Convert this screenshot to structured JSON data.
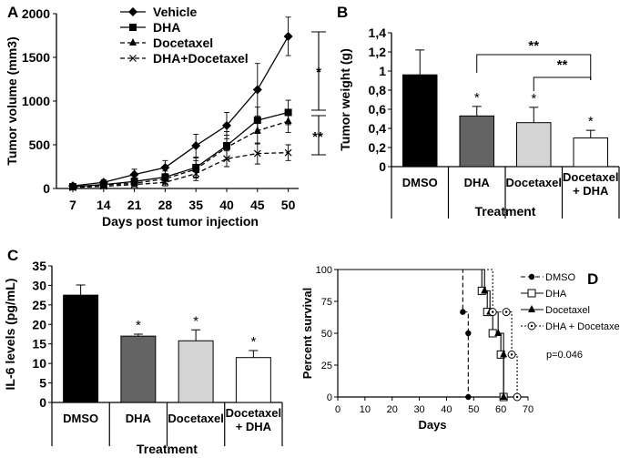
{
  "chart_data": [
    {
      "panel": "A",
      "type": "line",
      "ylabel": "Tumor volume (mm3)",
      "xlabel": "Days post tumor injection",
      "categories": [
        "7",
        "14",
        "21",
        "28",
        "35",
        "40",
        "45",
        "50"
      ],
      "ylim": [
        0,
        2000
      ],
      "yticks": [
        "0",
        "500",
        "1000",
        "1500",
        "2000"
      ],
      "series": [
        {
          "name": "Vehicle",
          "marker": "diamond",
          "dash": "solid",
          "values": [
            30,
            70,
            160,
            240,
            490,
            720,
            1130,
            1740
          ],
          "err": [
            20,
            30,
            60,
            80,
            130,
            150,
            300,
            220
          ]
        },
        {
          "name": "DHA",
          "marker": "square",
          "dash": "solid",
          "values": [
            20,
            45,
            80,
            130,
            240,
            490,
            780,
            870
          ],
          "err": [
            15,
            20,
            40,
            70,
            110,
            160,
            150,
            140
          ]
        },
        {
          "name": "Docetaxel",
          "marker": "triangle",
          "dash": "dashed",
          "values": [
            15,
            40,
            60,
            110,
            220,
            470,
            660,
            770
          ],
          "err": [
            10,
            20,
            30,
            60,
            100,
            140,
            150,
            130
          ]
        },
        {
          "name": "DHA+Docetaxel",
          "marker": "x",
          "dash": "dashed",
          "values": [
            10,
            25,
            45,
            70,
            170,
            340,
            400,
            410
          ],
          "err": [
            10,
            15,
            25,
            40,
            80,
            90,
            120,
            90
          ]
        }
      ],
      "annotations": [
        "*",
        "**"
      ]
    },
    {
      "panel": "B",
      "type": "bar",
      "ylabel": "Tumor weight (g)",
      "xlabel": "Treatment",
      "categories": [
        "DMSO",
        "DHA",
        "Docetaxel",
        "Docetaxel + DHA"
      ],
      "values": [
        0.96,
        0.53,
        0.46,
        0.3
      ],
      "err": [
        0.26,
        0.1,
        0.16,
        0.08
      ],
      "colors": [
        "#000000",
        "#646464",
        "#d4d4d4",
        "#ffffff"
      ],
      "ylim": [
        0,
        1.4
      ],
      "yticks": [
        "0",
        "0,2",
        "0,4",
        "0,6",
        "0,8",
        "1",
        "1,2",
        "1,4"
      ],
      "bar_stars": [
        "",
        "*",
        "*",
        "*"
      ],
      "brackets": [
        "**",
        "**"
      ]
    },
    {
      "panel": "C",
      "type": "bar",
      "ylabel": "IL-6 levels (pg/mL)",
      "xlabel": "Treatment",
      "categories": [
        "DMSO",
        "DHA",
        "Docetaxel",
        "Docetaxel + DHA"
      ],
      "values": [
        27.5,
        17.0,
        15.8,
        11.5
      ],
      "err": [
        2.6,
        0.5,
        2.8,
        1.8
      ],
      "colors": [
        "#000000",
        "#646464",
        "#d4d4d4",
        "#ffffff"
      ],
      "ylim": [
        0,
        35
      ],
      "yticks": [
        "0",
        "5",
        "10",
        "15",
        "20",
        "25",
        "30",
        "35"
      ],
      "bar_stars": [
        "",
        "*",
        "*",
        "*"
      ]
    },
    {
      "panel": "D",
      "type": "line",
      "ylabel": "Percent survival",
      "xlabel": "Days",
      "xlim": [
        0,
        70
      ],
      "ylim": [
        0,
        100
      ],
      "xticks": [
        "0",
        "10",
        "20",
        "30",
        "40",
        "50",
        "60",
        "70"
      ],
      "yticks": [
        "0",
        "25",
        "50",
        "75",
        "100"
      ],
      "series": [
        {
          "name": "DMSO",
          "marker": "dot",
          "dash": "dashed",
          "x": [
            0,
            46,
            46,
            48,
            48
          ],
          "y": [
            100,
            100,
            66.7,
            50,
            0
          ]
        },
        {
          "name": "DHA",
          "marker": "open-square",
          "dash": "solid",
          "x": [
            0,
            53,
            53,
            55,
            57,
            60,
            61
          ],
          "y": [
            100,
            100,
            83.3,
            66.7,
            50,
            33.3,
            0
          ]
        },
        {
          "name": "Docetaxel",
          "marker": "triangle",
          "dash": "solid",
          "x": [
            0,
            54,
            54,
            56,
            59,
            61,
            61
          ],
          "y": [
            100,
            100,
            83.3,
            66.7,
            50,
            33.3,
            0
          ]
        },
        {
          "name": "DHA + Docetaxel",
          "marker": "open-circle",
          "dash": "dotted",
          "x": [
            0,
            57,
            57,
            62,
            64,
            66
          ],
          "y": [
            100,
            100,
            66.7,
            66.7,
            33.3,
            0
          ]
        }
      ],
      "annotation": "p=0.046"
    }
  ],
  "panel_labels": [
    "A",
    "B",
    "C",
    "D"
  ]
}
